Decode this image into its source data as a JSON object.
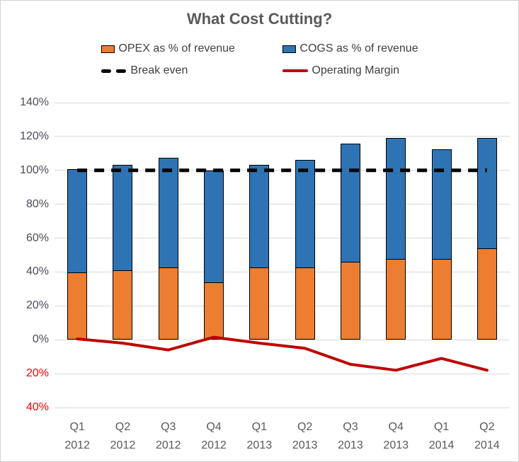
{
  "title": "What Cost Cutting?",
  "legend": {
    "opex_label": "OPEX as % of revenue",
    "cogs_label": "COGS as % of revenue",
    "break_even_label": "Break even",
    "operating_margin_label": "Operating Margin"
  },
  "colors": {
    "opex": "#ED7D31",
    "cogs": "#2E74B5",
    "break_even": "#000000",
    "operating_margin": "#C00000",
    "bar_border": "#000000",
    "gridline": "#D9D9D9",
    "tick_label": "#4B4B57",
    "negative_tick_label": "#FF0000",
    "x_label": "#595959",
    "title": "#595959",
    "chart_border": "#D3D3D3",
    "background": "#FFFFFF"
  },
  "chart_data": {
    "type": "bar",
    "stacked": true,
    "title": "What Cost Cutting?",
    "categories": [
      "Q1 2012",
      "Q2 2012",
      "Q3 2012",
      "Q4 2012",
      "Q1 2013",
      "Q2 2013",
      "Q3 2013",
      "Q4 2013",
      "Q1 2014",
      "Q2 2014"
    ],
    "series": [
      {
        "name": "OPEX as % of revenue",
        "type": "bar",
        "color": "#ED7D31",
        "values": [
          39,
          40,
          42,
          33,
          42,
          42,
          45,
          47,
          47,
          53
        ]
      },
      {
        "name": "COGS as % of revenue",
        "type": "bar",
        "color": "#2E74B5",
        "values": [
          60.5,
          62,
          64,
          65.5,
          60,
          63,
          69.5,
          71,
          64,
          65
        ]
      },
      {
        "name": "Break even",
        "type": "line",
        "dash": true,
        "color": "#000000",
        "values": [
          100,
          100,
          100,
          100,
          100,
          100,
          100,
          100,
          100,
          100
        ]
      },
      {
        "name": "Operating Margin",
        "type": "line",
        "dash": false,
        "color": "#C00000",
        "values": [
          0.5,
          -2,
          -6,
          1.5,
          -2,
          -5,
          -14.5,
          -18,
          -11,
          -18
        ]
      }
    ],
    "ylim": [
      -40,
      140
    ],
    "ytick_step": 20,
    "yticks": [
      140,
      120,
      100,
      80,
      60,
      40,
      20,
      0,
      -20,
      -40
    ],
    "ytick_labels": [
      "140%",
      "120%",
      "100%",
      "80%",
      "60%",
      "40%",
      "20%",
      "0%",
      "20%",
      "40%"
    ],
    "xlabel": "",
    "ylabel": "",
    "grid": true,
    "legend_position": "top"
  }
}
